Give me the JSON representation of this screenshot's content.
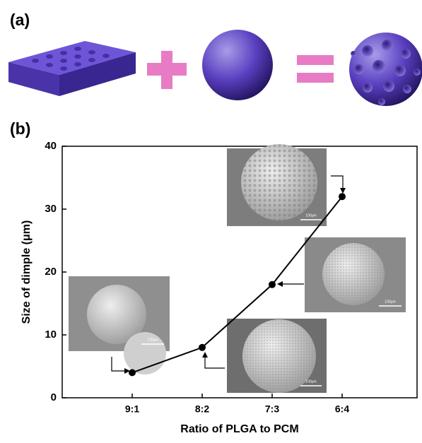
{
  "panel_labels": [
    "(a)",
    "(b)"
  ],
  "chart_data": {
    "type": "line",
    "x_label": "Ratio of PLGA to PCM",
    "y_label": "Size of dimple (μm)",
    "categories": [
      "9:1",
      "8:2",
      "7:3",
      "6:4"
    ],
    "values": [
      4,
      8,
      18,
      32
    ],
    "color": "#000000",
    "ylim": [
      0,
      40
    ],
    "yticks": [
      0,
      10,
      20,
      30,
      40
    ],
    "insets": [
      {
        "scale_label": "100μm"
      },
      {
        "scale_label": "100μm"
      },
      {
        "scale_label": "100μm"
      },
      {
        "scale_label": "100μm"
      }
    ]
  }
}
